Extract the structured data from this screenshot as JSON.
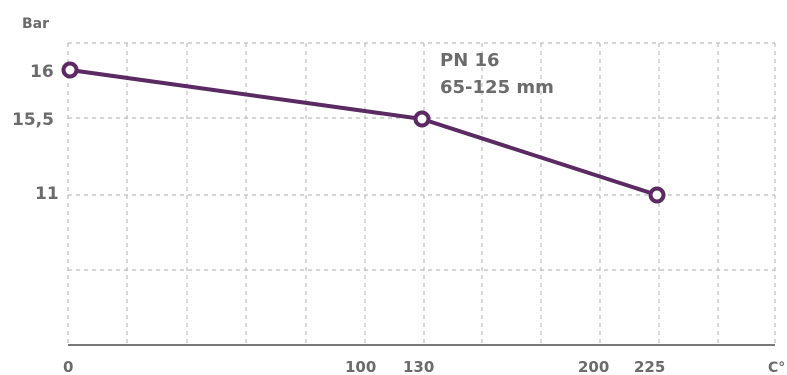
{
  "chart_data": {
    "type": "line",
    "ylabel": "Bar",
    "xlabel": "C°",
    "x_ticks": [
      "0",
      "100",
      "130",
      "200",
      "225"
    ],
    "y_ticks": [
      "16",
      "15,5",
      "11"
    ],
    "annotation": [
      "PN 16",
      "65-125 mm"
    ],
    "series": [
      {
        "x": [
          0,
          130,
          225
        ],
        "y": [
          16,
          15.5,
          11
        ]
      }
    ],
    "grid": true,
    "line_color": "#5b2a63",
    "grid_color": "#bdbdbd",
    "axis_color": "#777777",
    "text_color": "#6b6b6b"
  }
}
